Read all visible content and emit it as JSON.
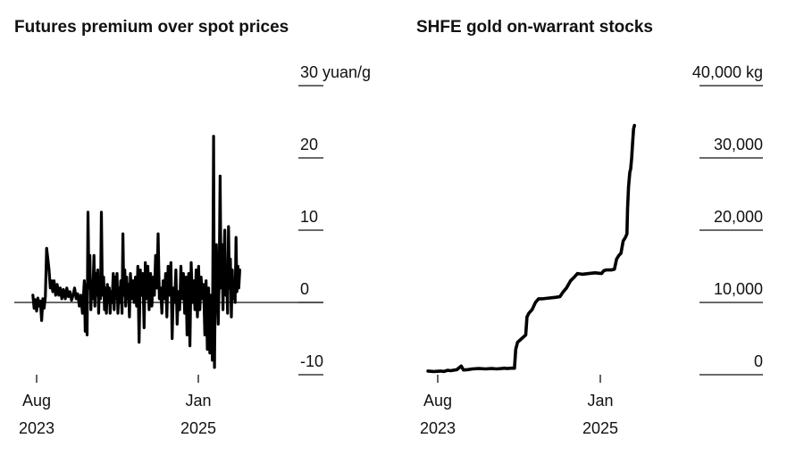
{
  "chart_data": [
    {
      "type": "line",
      "title": "Futures premium over spot prices",
      "unit_label": "yuan/g",
      "y_axis": {
        "min": -10,
        "max": 30,
        "ticks": [
          30,
          20,
          10,
          0,
          -10
        ],
        "tick_labels": [
          "30 yuan/g",
          "20",
          "10",
          "0",
          "-10"
        ],
        "position": "right"
      },
      "x_axis": {
        "ticks": [
          {
            "date": "2023-08-01",
            "label_line1": "Aug",
            "label_line2": "2023"
          },
          {
            "date": "2025-01-01",
            "label_line1": "Jan",
            "label_line2": "2025"
          }
        ]
      },
      "zero_line": true,
      "series": [
        {
          "color": "#000000",
          "points": [
            [
              "2023-07-20",
              1.0
            ],
            [
              "2023-07-24",
              -0.8
            ],
            [
              "2023-07-28",
              0.4
            ],
            [
              "2023-08-01",
              -1.2
            ],
            [
              "2023-08-05",
              0.6
            ],
            [
              "2023-08-09",
              -0.5
            ],
            [
              "2023-08-13",
              0.2
            ],
            [
              "2023-08-17",
              -2.5
            ],
            [
              "2023-08-21",
              0.5
            ],
            [
              "2023-08-25",
              -0.8
            ],
            [
              "2023-08-29",
              0.8
            ],
            [
              "2023-09-02",
              7.5
            ],
            [
              "2023-09-06",
              6.0
            ],
            [
              "2023-09-10",
              4.5
            ],
            [
              "2023-09-14",
              2.0
            ],
            [
              "2023-09-18",
              3.0
            ],
            [
              "2023-09-22",
              1.5
            ],
            [
              "2023-09-26",
              3.0
            ],
            [
              "2023-10-01",
              1.0
            ],
            [
              "2023-10-06",
              2.5
            ],
            [
              "2023-10-11",
              1.0
            ],
            [
              "2023-10-16",
              2.0
            ],
            [
              "2023-10-21",
              0.5
            ],
            [
              "2023-10-26",
              1.8
            ],
            [
              "2023-11-01",
              0.5
            ],
            [
              "2023-11-06",
              2.0
            ],
            [
              "2023-11-11",
              0.8
            ],
            [
              "2023-11-16",
              1.5
            ],
            [
              "2023-11-21",
              0.3
            ],
            [
              "2023-11-26",
              1.0
            ],
            [
              "2023-12-01",
              2.0
            ],
            [
              "2023-12-06",
              0.5
            ],
            [
              "2023-12-11",
              1.2
            ],
            [
              "2023-12-16",
              -0.5
            ],
            [
              "2023-12-21",
              1.0
            ],
            [
              "2023-12-26",
              -1.5
            ],
            [
              "2024-01-01",
              3.0
            ],
            [
              "2024-01-04",
              -4.0
            ],
            [
              "2024-01-07",
              2.5
            ],
            [
              "2024-01-10",
              -4.5
            ],
            [
              "2024-01-13",
              12.5
            ],
            [
              "2024-01-16",
              2.0
            ],
            [
              "2024-01-19",
              6.5
            ],
            [
              "2024-01-22",
              -1.0
            ],
            [
              "2024-01-25",
              3.0
            ],
            [
              "2024-01-28",
              0.5
            ],
            [
              "2024-02-01",
              6.5
            ],
            [
              "2024-02-04",
              -0.5
            ],
            [
              "2024-02-07",
              4.0
            ],
            [
              "2024-02-10",
              1.0
            ],
            [
              "2024-02-13",
              4.5
            ],
            [
              "2024-02-16",
              -1.5
            ],
            [
              "2024-02-19",
              3.0
            ],
            [
              "2024-02-22",
              0.5
            ],
            [
              "2024-02-25",
              12.5
            ],
            [
              "2024-02-28",
              1.0
            ],
            [
              "2024-03-03",
              3.5
            ],
            [
              "2024-03-06",
              -1.0
            ],
            [
              "2024-03-09",
              2.0
            ],
            [
              "2024-03-12",
              -1.5
            ],
            [
              "2024-03-15",
              2.5
            ],
            [
              "2024-03-18",
              0.0
            ],
            [
              "2024-03-21",
              2.0
            ],
            [
              "2024-03-24",
              -1.5
            ],
            [
              "2024-03-27",
              1.5
            ],
            [
              "2024-03-30",
              0.0
            ],
            [
              "2024-04-03",
              4.0
            ],
            [
              "2024-04-06",
              -1.0
            ],
            [
              "2024-04-09",
              3.5
            ],
            [
              "2024-04-12",
              0.5
            ],
            [
              "2024-04-15",
              4.0
            ],
            [
              "2024-04-18",
              -1.5
            ],
            [
              "2024-04-21",
              2.0
            ],
            [
              "2024-04-24",
              0.0
            ],
            [
              "2024-04-27",
              3.0
            ],
            [
              "2024-05-01",
              -1.5
            ],
            [
              "2024-05-04",
              9.5
            ],
            [
              "2024-05-07",
              1.0
            ],
            [
              "2024-05-10",
              4.5
            ],
            [
              "2024-05-13",
              -0.5
            ],
            [
              "2024-05-16",
              3.5
            ],
            [
              "2024-05-19",
              0.5
            ],
            [
              "2024-05-22",
              2.5
            ],
            [
              "2024-05-25",
              -2.0
            ],
            [
              "2024-05-28",
              4.0
            ],
            [
              "2024-06-01",
              0.5
            ],
            [
              "2024-06-05",
              3.0
            ],
            [
              "2024-06-09",
              0.0
            ],
            [
              "2024-06-13",
              3.5
            ],
            [
              "2024-06-17",
              -0.5
            ],
            [
              "2024-06-21",
              5.0
            ],
            [
              "2024-06-25",
              -5.5
            ],
            [
              "2024-06-29",
              4.5
            ],
            [
              "2024-07-03",
              1.0
            ],
            [
              "2024-07-07",
              4.0
            ],
            [
              "2024-07-11",
              -3.5
            ],
            [
              "2024-07-15",
              5.5
            ],
            [
              "2024-07-19",
              0.5
            ],
            [
              "2024-07-23",
              5.0
            ],
            [
              "2024-07-27",
              -1.0
            ],
            [
              "2024-08-01",
              4.0
            ],
            [
              "2024-08-05",
              -0.5
            ],
            [
              "2024-08-09",
              3.5
            ],
            [
              "2024-08-13",
              1.0
            ],
            [
              "2024-08-17",
              6.5
            ],
            [
              "2024-08-21",
              2.0
            ],
            [
              "2024-08-25",
              9.5
            ],
            [
              "2024-08-29",
              0.5
            ],
            [
              "2024-09-02",
              2.0
            ],
            [
              "2024-09-06",
              -1.5
            ],
            [
              "2024-09-10",
              3.0
            ],
            [
              "2024-09-14",
              0.5
            ],
            [
              "2024-09-18",
              4.0
            ],
            [
              "2024-09-22",
              -2.0
            ],
            [
              "2024-09-26",
              5.0
            ],
            [
              "2024-10-01",
              1.0
            ],
            [
              "2024-10-05",
              5.5
            ],
            [
              "2024-10-09",
              -5.0
            ],
            [
              "2024-10-13",
              2.0
            ],
            [
              "2024-10-17",
              0.0
            ],
            [
              "2024-10-21",
              4.5
            ],
            [
              "2024-10-25",
              -3.0
            ],
            [
              "2024-10-29",
              1.5
            ],
            [
              "2024-11-02",
              -1.0
            ],
            [
              "2024-11-06",
              5.0
            ],
            [
              "2024-11-10",
              0.5
            ],
            [
              "2024-11-14",
              4.0
            ],
            [
              "2024-11-18",
              -1.5
            ],
            [
              "2024-11-22",
              3.5
            ],
            [
              "2024-11-26",
              -4.5
            ],
            [
              "2024-12-01",
              4.0
            ],
            [
              "2024-12-05",
              -6.0
            ],
            [
              "2024-12-09",
              5.5
            ],
            [
              "2024-12-13",
              0.0
            ],
            [
              "2024-12-17",
              3.0
            ],
            [
              "2024-12-21",
              -1.0
            ],
            [
              "2024-12-25",
              4.5
            ],
            [
              "2024-12-29",
              -2.0
            ],
            [
              "2025-01-02",
              5.0
            ],
            [
              "2025-01-06",
              -1.0
            ],
            [
              "2025-01-10",
              3.5
            ],
            [
              "2025-01-14",
              0.5
            ],
            [
              "2025-01-18",
              2.5
            ],
            [
              "2025-01-22",
              -4.5
            ],
            [
              "2025-01-26",
              3.0
            ],
            [
              "2025-01-30",
              -6.5
            ],
            [
              "2025-02-03",
              2.0
            ],
            [
              "2025-02-07",
              -7.0
            ],
            [
              "2025-02-11",
              1.0
            ],
            [
              "2025-02-15",
              -8.0
            ],
            [
              "2025-02-19",
              23.0
            ],
            [
              "2025-02-22",
              -9.0
            ],
            [
              "2025-02-25",
              5.0
            ],
            [
              "2025-02-28",
              8.0
            ],
            [
              "2025-03-03",
              1.0
            ],
            [
              "2025-03-06",
              -3.0
            ],
            [
              "2025-03-09",
              4.0
            ],
            [
              "2025-03-12",
              17.5
            ],
            [
              "2025-03-15",
              2.0
            ],
            [
              "2025-03-18",
              8.0
            ],
            [
              "2025-03-21",
              -1.0
            ],
            [
              "2025-03-24",
              5.5
            ],
            [
              "2025-03-27",
              10.0
            ],
            [
              "2025-03-30",
              1.0
            ],
            [
              "2025-04-02",
              3.5
            ],
            [
              "2025-04-05",
              -1.5
            ],
            [
              "2025-04-08",
              10.5
            ],
            [
              "2025-04-11",
              2.0
            ],
            [
              "2025-04-14",
              6.0
            ],
            [
              "2025-04-17",
              -2.0
            ],
            [
              "2025-04-20",
              4.5
            ],
            [
              "2025-04-23",
              0.5
            ],
            [
              "2025-04-26",
              3.0
            ],
            [
              "2025-04-29",
              0.0
            ],
            [
              "2025-05-02",
              9.0
            ],
            [
              "2025-05-05",
              1.5
            ],
            [
              "2025-05-08",
              5.0
            ],
            [
              "2025-05-11",
              2.0
            ],
            [
              "2025-05-14",
              4.5
            ]
          ]
        }
      ]
    },
    {
      "type": "line",
      "title": "SHFE gold on-warrant stocks",
      "unit_label": "kg",
      "y_axis": {
        "min": 0,
        "max": 40000,
        "ticks": [
          40000,
          30000,
          20000,
          10000,
          0
        ],
        "tick_labels": [
          "40,000 kg",
          "30,000",
          "20,000",
          "10,000",
          "0"
        ],
        "position": "right"
      },
      "x_axis": {
        "ticks": [
          {
            "date": "2023-08-01",
            "label_line1": "Aug",
            "label_line2": "2023"
          },
          {
            "date": "2025-01-01",
            "label_line1": "Jan",
            "label_line2": "2025"
          }
        ]
      },
      "zero_line": false,
      "series": [
        {
          "color": "#000000",
          "points": [
            [
              "2023-07-01",
              500
            ],
            [
              "2023-07-20",
              450
            ],
            [
              "2023-08-10",
              500
            ],
            [
              "2023-08-20",
              450
            ],
            [
              "2023-09-01",
              600
            ],
            [
              "2023-09-12",
              550
            ],
            [
              "2023-10-01",
              700
            ],
            [
              "2023-10-15",
              1200
            ],
            [
              "2023-10-22",
              650
            ],
            [
              "2023-11-05",
              700
            ],
            [
              "2023-11-20",
              800
            ],
            [
              "2023-12-10",
              850
            ],
            [
              "2024-01-01",
              800
            ],
            [
              "2024-01-20",
              850
            ],
            [
              "2024-02-05",
              800
            ],
            [
              "2024-02-20",
              850
            ],
            [
              "2024-03-01",
              900
            ],
            [
              "2024-03-10",
              850
            ],
            [
              "2024-03-22",
              900
            ],
            [
              "2024-04-02",
              900
            ],
            [
              "2024-04-06",
              3500
            ],
            [
              "2024-04-12",
              4500
            ],
            [
              "2024-04-25",
              5000
            ],
            [
              "2024-05-08",
              5500
            ],
            [
              "2024-05-12",
              8000
            ],
            [
              "2024-05-18",
              8500
            ],
            [
              "2024-05-28",
              9000
            ],
            [
              "2024-06-08",
              10000
            ],
            [
              "2024-06-18",
              10500
            ],
            [
              "2024-07-01",
              10500
            ],
            [
              "2024-07-20",
              10600
            ],
            [
              "2024-08-10",
              10700
            ],
            [
              "2024-08-25",
              10800
            ],
            [
              "2024-09-05",
              11500
            ],
            [
              "2024-09-15",
              12000
            ],
            [
              "2024-09-28",
              13000
            ],
            [
              "2024-10-10",
              13500
            ],
            [
              "2024-10-20",
              14000
            ],
            [
              "2024-11-05",
              13900
            ],
            [
              "2024-11-25",
              14000
            ],
            [
              "2024-12-15",
              14100
            ],
            [
              "2025-01-05",
              14000
            ],
            [
              "2025-01-12",
              14400
            ],
            [
              "2025-01-20",
              14500
            ],
            [
              "2025-02-05",
              14500
            ],
            [
              "2025-02-15",
              14600
            ],
            [
              "2025-02-22",
              16000
            ],
            [
              "2025-03-01",
              16500
            ],
            [
              "2025-03-08",
              16800
            ],
            [
              "2025-03-15",
              18500
            ],
            [
              "2025-03-22",
              19000
            ],
            [
              "2025-03-27",
              19500
            ],
            [
              "2025-03-29",
              23000
            ],
            [
              "2025-04-01",
              26000
            ],
            [
              "2025-04-05",
              28000
            ],
            [
              "2025-04-08",
              28500
            ],
            [
              "2025-04-11",
              30000
            ],
            [
              "2025-04-14",
              32000
            ],
            [
              "2025-04-17",
              34000
            ],
            [
              "2025-04-20",
              34500
            ]
          ]
        }
      ]
    }
  ]
}
